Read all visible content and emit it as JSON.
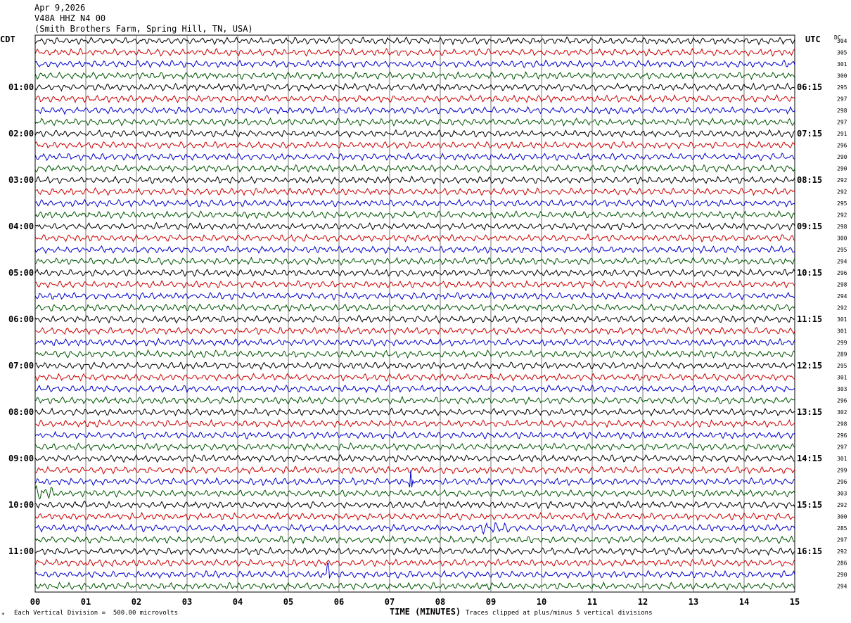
{
  "header": {
    "date": "Apr 9,2026",
    "station": "V48A HHZ N4 00",
    "location": "(Smith Brothers Farm, Spring Hill, TN, USA)"
  },
  "left_timezone": "CDT",
  "right_timezone": "UTC",
  "dc_label": "DC",
  "footer": {
    "scale_note": "Each Vertical Division =  500.00 microvolts",
    "axis_title": "TIME (MINUTES)",
    "clip_note": "Traces clipped at plus/minus 5 vertical divisions"
  },
  "chart_data": {
    "type": "line",
    "title": "",
    "xlabel": "TIME (MINUTES)",
    "ylabel": "",
    "xlim": [
      0,
      15
    ],
    "x_ticks": [
      "00",
      "01",
      "02",
      "03",
      "04",
      "05",
      "06",
      "07",
      "08",
      "09",
      "10",
      "11",
      "12",
      "13",
      "14",
      "15"
    ],
    "grid": "vertical lines every minute",
    "trace_colors": [
      "#000000",
      "#cc0000",
      "#0000cc",
      "#005500"
    ],
    "trace_count": 48,
    "left_hour_labels": [
      "01:00",
      "02:00",
      "03:00",
      "04:00",
      "05:00",
      "06:00",
      "07:00",
      "08:00",
      "09:00",
      "10:00",
      "11:00"
    ],
    "right_hour_labels": [
      "06:15",
      "07:15",
      "08:15",
      "09:15",
      "10:15",
      "11:15",
      "12:15",
      "13:15",
      "14:15",
      "15:15",
      "16:15"
    ],
    "dc_offsets": [
      304,
      305,
      301,
      300,
      295,
      297,
      298,
      297,
      291,
      296,
      290,
      290,
      292,
      292,
      295,
      292,
      298,
      300,
      295,
      294,
      296,
      298,
      294,
      292,
      301,
      301,
      299,
      289,
      295,
      301,
      303,
      296,
      302,
      298,
      296,
      297,
      301,
      299,
      296,
      303,
      292,
      300,
      285,
      297,
      292,
      286,
      290,
      294
    ],
    "events": [
      {
        "trace": 38,
        "minute": 7.42,
        "amplitude": "large spike"
      },
      {
        "trace": 39,
        "minute": 0.1,
        "amplitude": "burst"
      },
      {
        "trace": 42,
        "minute": 9.1,
        "amplitude": "small burst"
      },
      {
        "trace": 46,
        "minute": 5.78,
        "amplitude": "large spike (clipped)"
      }
    ]
  }
}
